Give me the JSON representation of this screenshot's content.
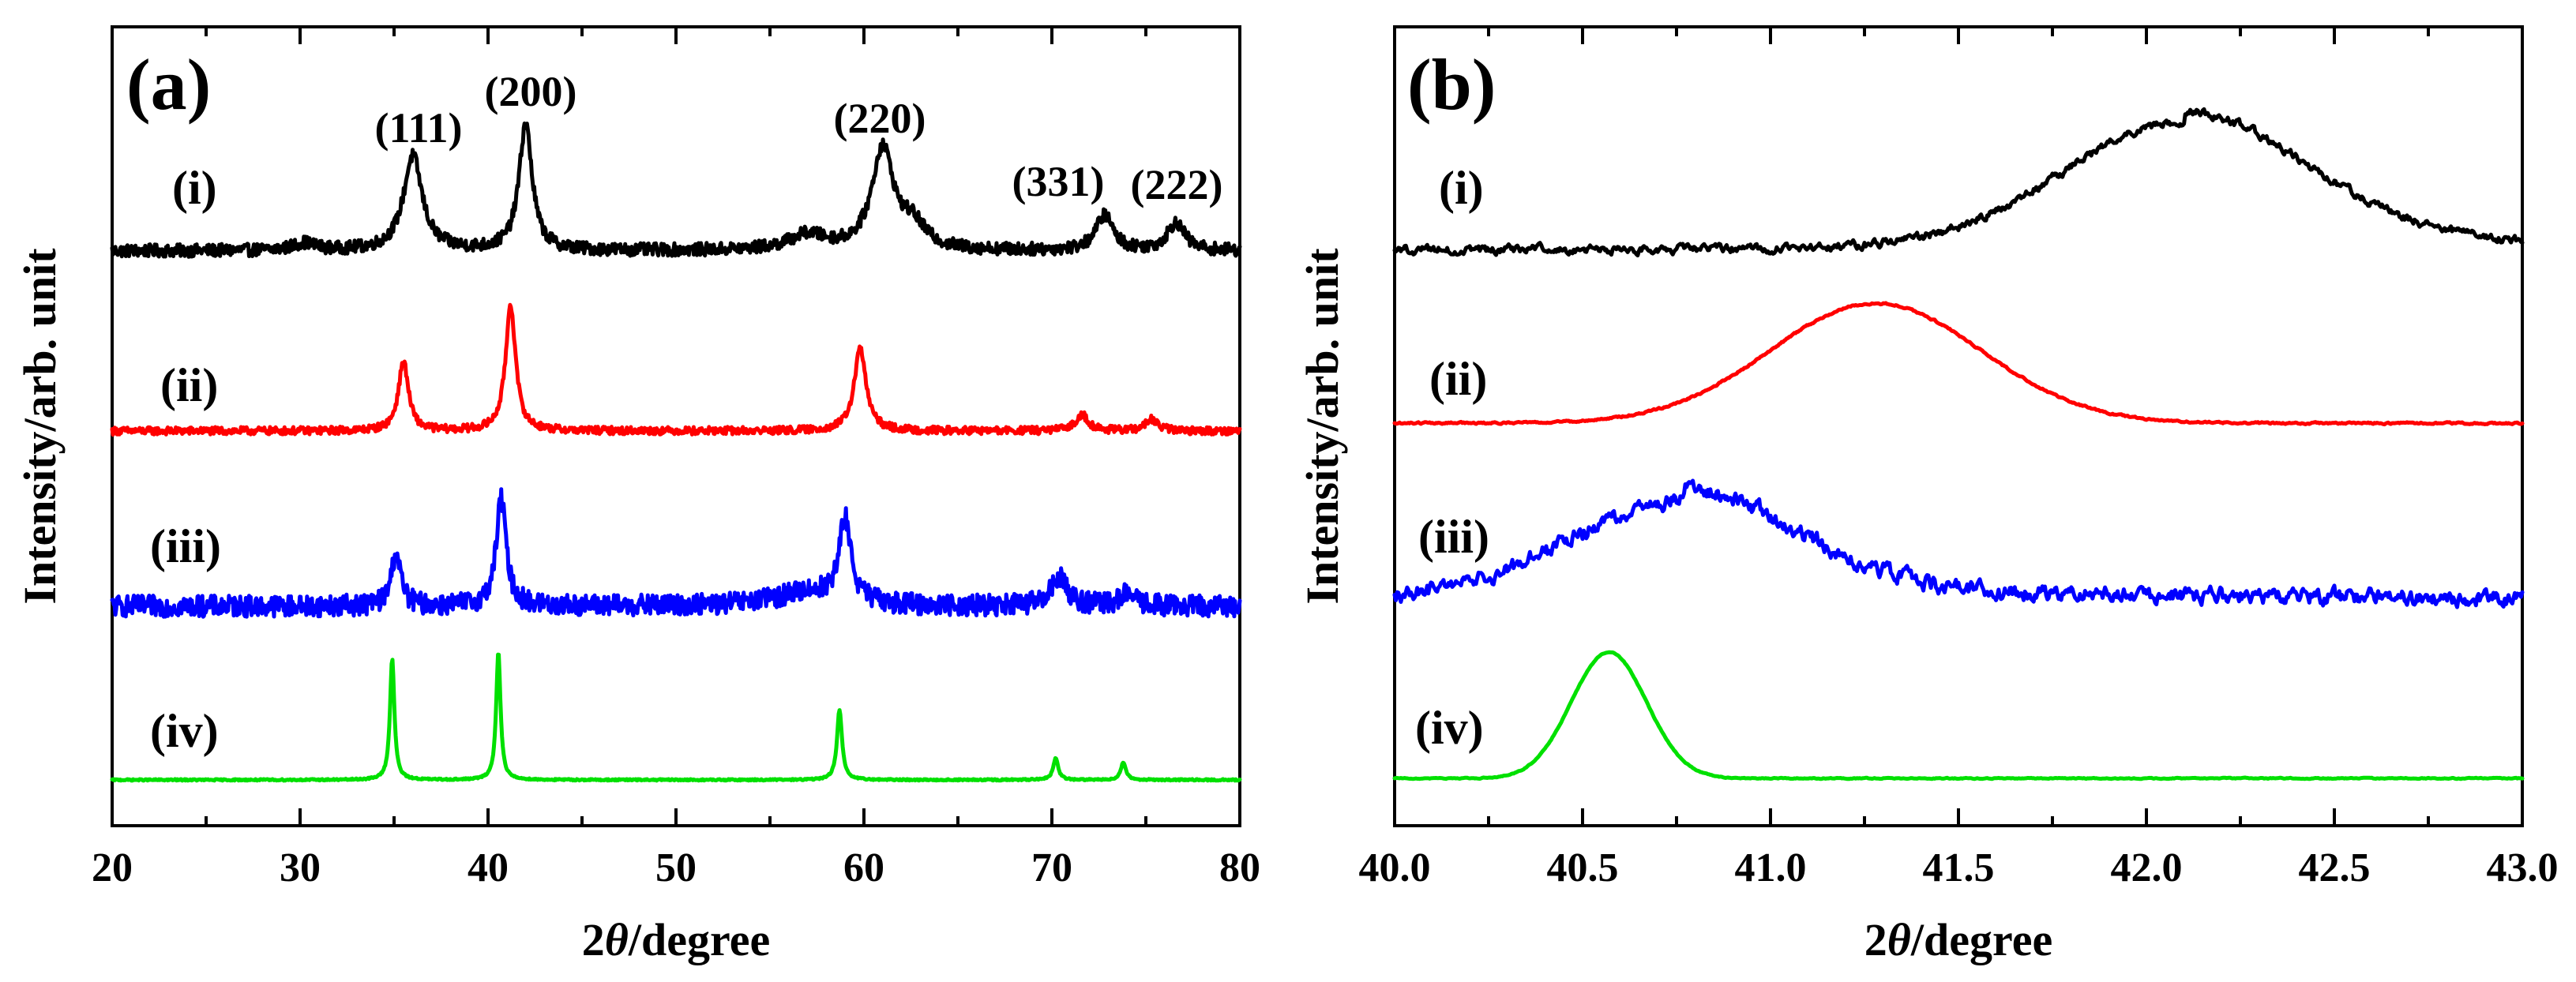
{
  "chart_data": [
    {
      "type": "line",
      "panel_label": "(a)",
      "xlabel": "2θ/degree",
      "xlabel_prefix": "2",
      "xlabel_theta": "θ",
      "xlabel_suffix": "/degree",
      "ylabel": "Intensity/arb. unit",
      "xlim": [
        20,
        80
      ],
      "xticks": [
        "20",
        "30",
        "40",
        "50",
        "60",
        "70",
        "80"
      ],
      "xtick_values": [
        20,
        30,
        40,
        50,
        60,
        70,
        80
      ],
      "y_ticks_shown": false,
      "peak_annotations": [
        {
          "label": "(111)",
          "x": 36.0
        },
        {
          "label": "(200)",
          "x": 42.0
        },
        {
          "label": "(220)",
          "x": 61.0
        },
        {
          "label": "(331)",
          "x": 72.8
        },
        {
          "label": "(222)",
          "x": 76.6
        }
      ],
      "series": [
        {
          "name": "(i)",
          "color": "#000000",
          "noise": 0.05,
          "baseline": 0.0,
          "peaks": [
            {
              "x": 30.2,
              "h": 0.06,
              "w": 0.7
            },
            {
              "x": 36.0,
              "h": 0.75,
              "w": 0.6
            },
            {
              "x": 42.0,
              "h": 1.0,
              "w": 0.42
            },
            {
              "x": 57.0,
              "h": 0.12,
              "w": 1.2
            },
            {
              "x": 61.0,
              "h": 0.8,
              "w": 0.7
            },
            {
              "x": 62.6,
              "h": 0.18,
              "w": 0.8
            },
            {
              "x": 72.8,
              "h": 0.28,
              "w": 0.55
            },
            {
              "x": 76.6,
              "h": 0.22,
              "w": 0.55
            }
          ]
        },
        {
          "name": "(ii)",
          "color": "#ff0000",
          "noise": 0.03,
          "baseline": 0.0,
          "peaks": [
            {
              "x": 35.5,
              "h": 0.55,
              "w": 0.32
            },
            {
              "x": 41.2,
              "h": 1.0,
              "w": 0.32
            },
            {
              "x": 59.8,
              "h": 0.65,
              "w": 0.38
            },
            {
              "x": 71.6,
              "h": 0.13,
              "w": 0.4
            },
            {
              "x": 75.3,
              "h": 0.09,
              "w": 0.4
            }
          ]
        },
        {
          "name": "(iii)",
          "color": "#0000ff",
          "noise": 0.09,
          "baseline": 0.0,
          "peaks": [
            {
              "x": 35.1,
              "h": 0.45,
              "w": 0.3
            },
            {
              "x": 40.7,
              "h": 0.9,
              "w": 0.32
            },
            {
              "x": 59.0,
              "h": 0.7,
              "w": 0.38
            },
            {
              "x": 57.0,
              "h": 0.12,
              "w": 2.0
            },
            {
              "x": 70.4,
              "h": 0.25,
              "w": 0.5
            },
            {
              "x": 74.0,
              "h": 0.1,
              "w": 0.5
            }
          ]
        },
        {
          "name": "(iv)",
          "color": "#00e000",
          "noise": 0.006,
          "baseline": 0.0,
          "peaks": [
            {
              "x": 34.9,
              "h": 0.95,
              "w": 0.14
            },
            {
              "x": 40.55,
              "h": 1.0,
              "w": 0.14
            },
            {
              "x": 58.7,
              "h": 0.55,
              "w": 0.16
            },
            {
              "x": 70.2,
              "h": 0.17,
              "w": 0.16
            },
            {
              "x": 73.8,
              "h": 0.14,
              "w": 0.16
            }
          ]
        }
      ]
    },
    {
      "type": "line",
      "panel_label": "(b)",
      "xlabel": "2θ/degree",
      "xlabel_prefix": "2",
      "xlabel_theta": "θ",
      "xlabel_suffix": "/degree",
      "ylabel": "Intensity/arb. unit",
      "xlim": [
        40.0,
        43.0
      ],
      "xticks": [
        "40.0",
        "40.5",
        "41.0",
        "41.5",
        "42.0",
        "42.5",
        "43.0"
      ],
      "xtick_values": [
        40.0,
        40.5,
        41.0,
        41.5,
        42.0,
        42.5,
        43.0
      ],
      "y_ticks_shown": false,
      "series": [
        {
          "name": "(i)",
          "color": "#000000",
          "noise": 0.025,
          "peak": 42.1,
          "width": 0.32,
          "height": 0.95,
          "tail": 0.12
        },
        {
          "name": "(ii)",
          "color": "#ff0000",
          "noise": 0.006,
          "peak": 41.28,
          "width": 0.28,
          "height": 1.0,
          "tail": 0.0
        },
        {
          "name": "(iii)",
          "color": "#0000ff",
          "noise": 0.05,
          "peak": 40.77,
          "width": 0.3,
          "height": 0.8,
          "tail": 0.12
        },
        {
          "name": "(iv)",
          "color": "#00e000",
          "noise": 0.003,
          "peak": 40.57,
          "width": 0.1,
          "height": 1.0,
          "tail": 0.0
        }
      ]
    }
  ]
}
